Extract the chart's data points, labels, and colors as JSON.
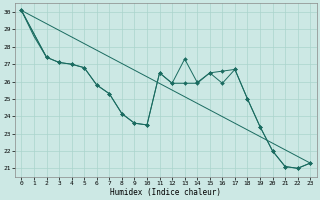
{
  "xlabel": "Humidex (Indice chaleur)",
  "bg_color": "#cce8e4",
  "grid_color": "#aad4cc",
  "line_color": "#1a6b60",
  "xlim": [
    -0.5,
    23.5
  ],
  "ylim": [
    20.5,
    30.5
  ],
  "yticks": [
    21,
    22,
    23,
    24,
    25,
    26,
    27,
    28,
    29,
    30
  ],
  "xticks": [
    0,
    1,
    2,
    3,
    4,
    5,
    6,
    7,
    8,
    9,
    10,
    11,
    12,
    13,
    14,
    15,
    16,
    17,
    18,
    19,
    20,
    21,
    22,
    23
  ],
  "lines": [
    {
      "x": [
        0,
        1,
        2
      ],
      "y": [
        30.1,
        28.6,
        27.4
      ],
      "markers": false
    },
    {
      "x": [
        0,
        2,
        3,
        4,
        5,
        6,
        7,
        8,
        9,
        10,
        11,
        12,
        13,
        14,
        15,
        16,
        17,
        18,
        19,
        20,
        21,
        22,
        23
      ],
      "y": [
        30.1,
        27.4,
        27.1,
        27.0,
        26.8,
        25.8,
        25.3,
        24.15,
        23.6,
        23.5,
        26.5,
        25.9,
        27.3,
        25.95,
        26.5,
        26.6,
        26.7,
        25.0,
        23.4,
        22.0,
        21.1,
        21.0,
        21.3
      ],
      "markers": true
    },
    {
      "x": [
        0,
        2,
        3,
        4,
        5,
        6,
        7,
        8,
        9,
        10,
        11,
        12,
        13,
        14,
        15,
        16,
        17,
        18,
        19,
        20,
        21,
        22,
        23
      ],
      "y": [
        30.1,
        27.4,
        27.1,
        27.0,
        26.8,
        25.8,
        25.3,
        24.15,
        23.6,
        23.5,
        26.5,
        25.9,
        25.9,
        25.9,
        26.5,
        25.9,
        26.7,
        25.0,
        23.4,
        22.0,
        21.1,
        21.0,
        21.3
      ],
      "markers": true
    },
    {
      "x": [
        0,
        23
      ],
      "y": [
        30.1,
        21.3
      ],
      "markers": false
    }
  ]
}
